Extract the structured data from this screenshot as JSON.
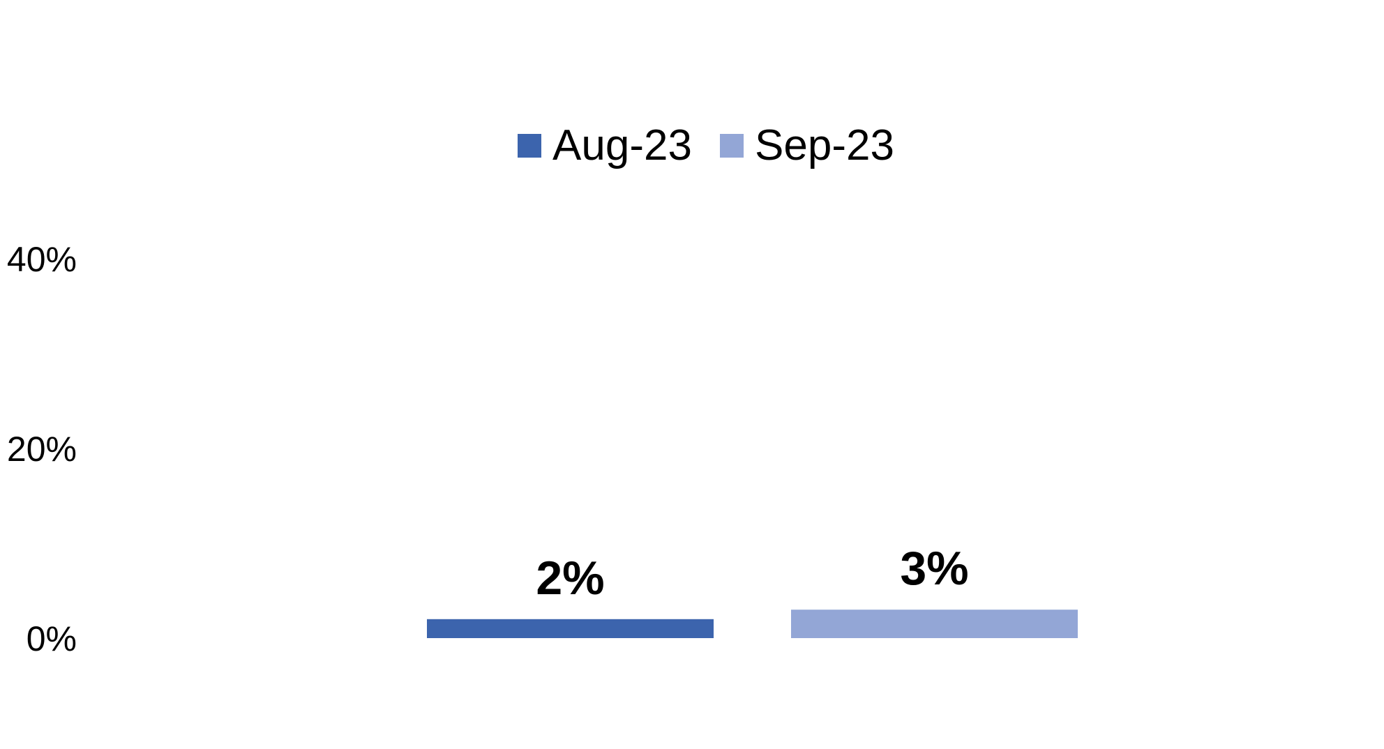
{
  "chart_data": {
    "type": "bar",
    "categories": [
      ""
    ],
    "series": [
      {
        "name": "Aug-23",
        "values": [
          2
        ],
        "label": "2%",
        "color": "#3c64ad"
      },
      {
        "name": "Sep-23",
        "values": [
          3
        ],
        "label": "3%",
        "color": "#93a6d6"
      }
    ],
    "title": "",
    "xlabel": "",
    "ylabel": "",
    "ylim": [
      0,
      40
    ],
    "yticks": [
      {
        "value": 40,
        "label": "40%"
      },
      {
        "value": 20,
        "label": "20%"
      },
      {
        "value": 0,
        "label": "0%"
      }
    ],
    "legend": "top-center",
    "grid": false
  }
}
